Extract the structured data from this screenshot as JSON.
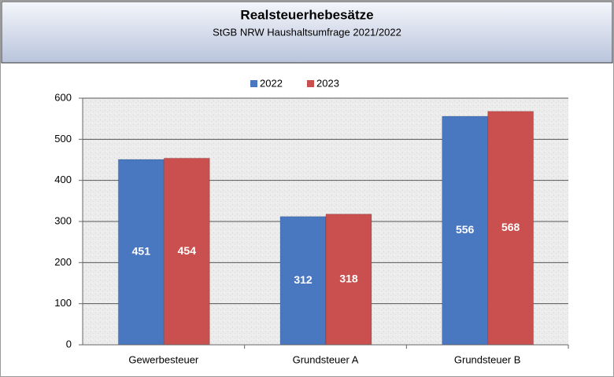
{
  "chart_data": {
    "type": "bar",
    "title": "Realsteuerhebesätze",
    "subtitle": "StGB NRW Haushaltsumfrage 2021/2022",
    "categories": [
      "Gewerbesteuer",
      "Grundsteuer A",
      "Grundsteuer B"
    ],
    "series": [
      {
        "name": "2022",
        "color": "#4a78c0",
        "values": [
          451,
          312,
          556
        ]
      },
      {
        "name": "2023",
        "color": "#c9504e",
        "values": [
          454,
          318,
          568
        ]
      }
    ],
    "ylim": [
      0,
      600
    ],
    "yticks": [
      0,
      100,
      200,
      300,
      400,
      500,
      600
    ],
    "grid": true,
    "legend": "top"
  }
}
